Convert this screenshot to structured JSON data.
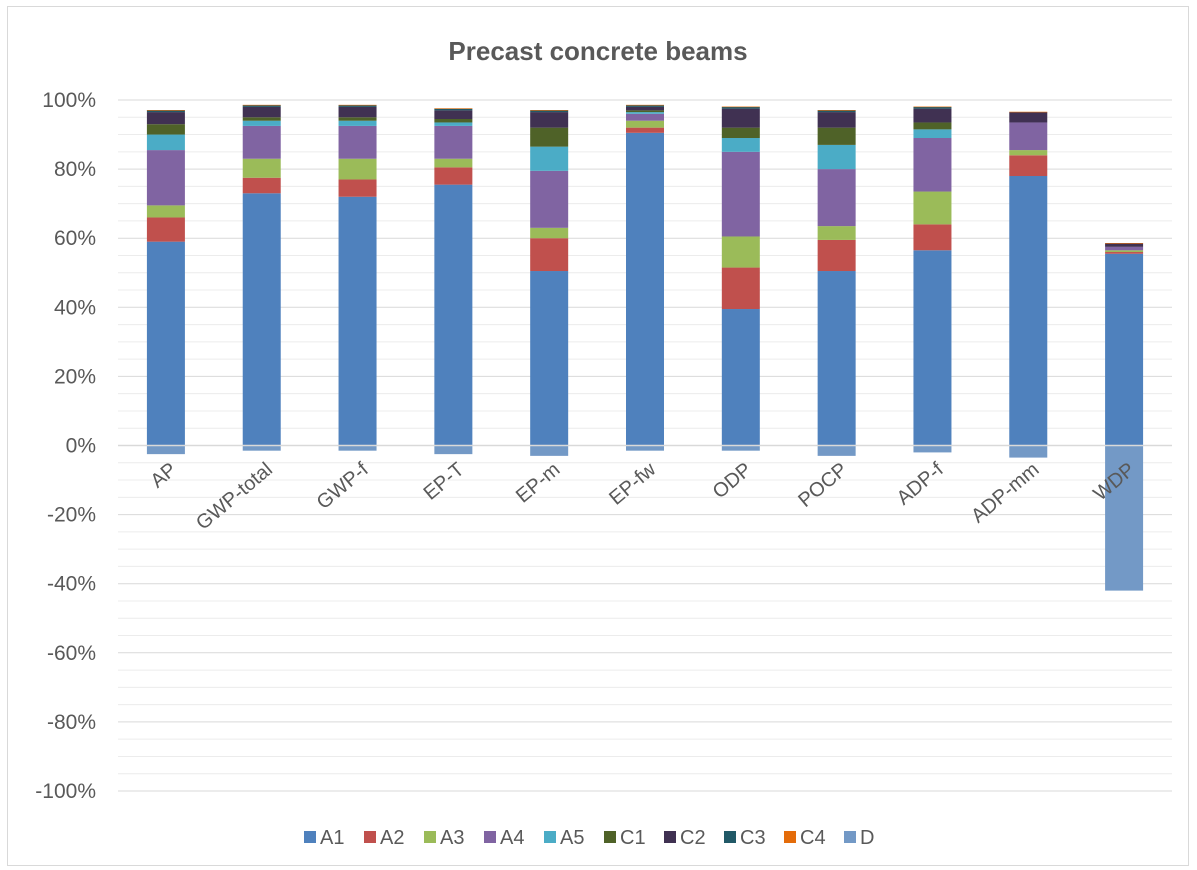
{
  "chart_data": {
    "type": "bar",
    "stacked": true,
    "title": "Precast concrete beams",
    "xlabel": "",
    "ylabel": "",
    "ylim": [
      -100,
      100
    ],
    "y_ticks": [
      "100%",
      "80%",
      "60%",
      "40%",
      "20%",
      "0%",
      "-20%",
      "-40%",
      "-60%",
      "-80%",
      "-100%"
    ],
    "grid": true,
    "legend_position": "bottom",
    "categories": [
      "AP",
      "GWP-total",
      "GWP-f",
      "EP-T",
      "EP-m",
      "EP-fw",
      "ODP",
      "POCP",
      "ADP-f",
      "ADP-mm",
      "WDP"
    ],
    "series": [
      {
        "name": "A1",
        "color": "#4F81BD",
        "values": [
          59,
          73,
          72,
          75.5,
          50.5,
          90.5,
          39.5,
          50.5,
          56.5,
          78,
          55.5
        ]
      },
      {
        "name": "A2",
        "color": "#C0504D",
        "values": [
          7,
          4.5,
          5,
          5,
          9.5,
          1.5,
          12,
          9,
          7.5,
          6,
          0.5
        ]
      },
      {
        "name": "A3",
        "color": "#9BBB59",
        "values": [
          3.5,
          5.5,
          6,
          2.5,
          3,
          2,
          9,
          4,
          9.5,
          1.5,
          0.5
        ]
      },
      {
        "name": "A4",
        "color": "#8064A2",
        "values": [
          16,
          9.5,
          9.5,
          9.5,
          16.5,
          2,
          24.5,
          16.5,
          15.5,
          8,
          1
        ]
      },
      {
        "name": "A5",
        "color": "#4BACC6",
        "values": [
          4.5,
          1.5,
          1.5,
          1,
          7,
          0.5,
          4,
          7,
          2.5,
          0,
          0
        ]
      },
      {
        "name": "C1",
        "color": "#4F6228",
        "values": [
          3,
          1,
          1,
          1,
          5.5,
          0.5,
          3,
          5,
          2,
          0,
          0
        ]
      },
      {
        "name": "C2",
        "color": "#403152",
        "values": [
          3.5,
          3,
          3,
          2.5,
          4.5,
          1,
          5.5,
          4.5,
          4,
          3,
          1
        ]
      },
      {
        "name": "C3",
        "color": "#215967",
        "values": [
          0.5,
          0.5,
          0.5,
          0.5,
          0.5,
          0.5,
          0.5,
          0.5,
          0.5,
          0,
          0
        ]
      },
      {
        "name": "C4",
        "color": "#E46C0A",
        "values": [
          0.1,
          0.1,
          0.1,
          0.1,
          0.1,
          0.1,
          0.1,
          0.1,
          0.1,
          0.1,
          0.1
        ]
      },
      {
        "name": "D",
        "color": "#7399C6",
        "values": [
          -2.5,
          -1.5,
          -1.5,
          -2.5,
          -3,
          -1.5,
          -1.5,
          -3,
          -2,
          -3.5,
          -42
        ]
      }
    ]
  }
}
